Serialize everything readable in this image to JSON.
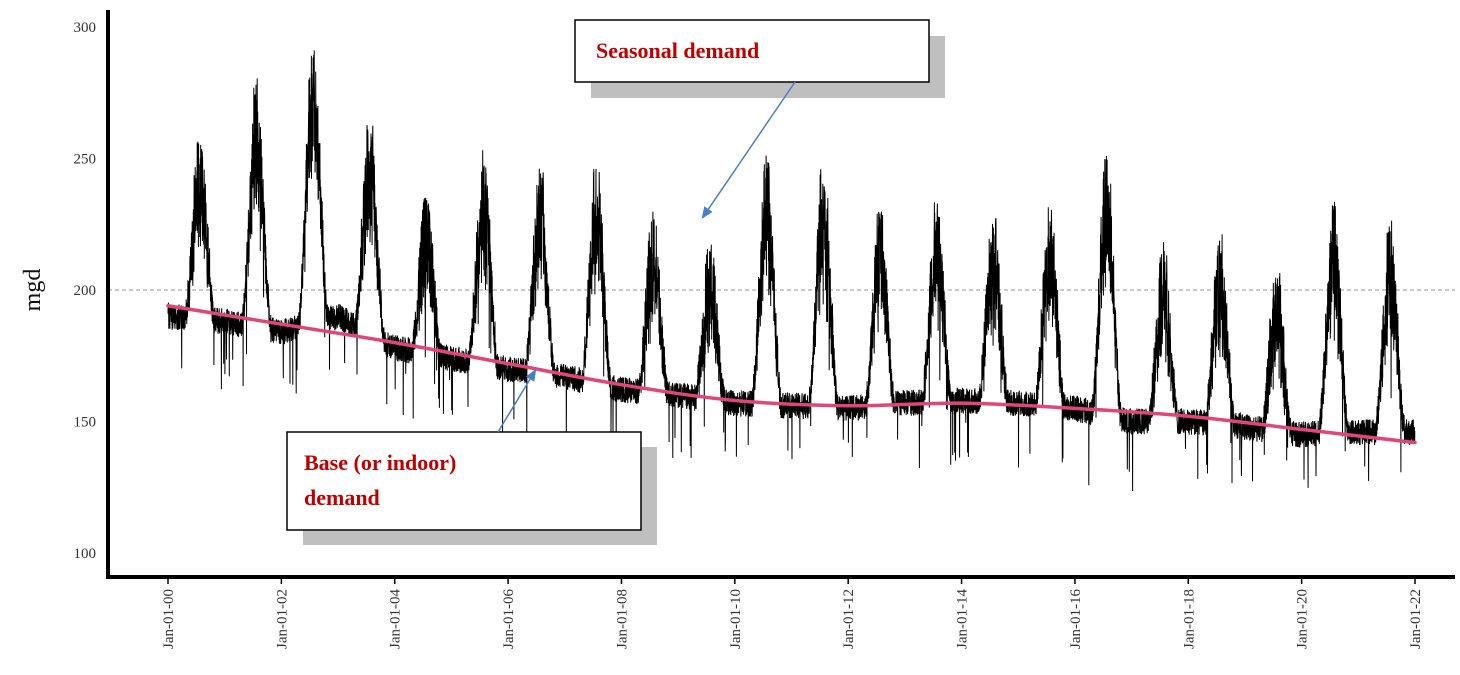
{
  "chart_data": {
    "type": "line",
    "ylabel": "mgd",
    "ylim": [
      100,
      300
    ],
    "yticks": [
      100,
      150,
      200,
      250,
      300
    ],
    "xlim": [
      "2000-01-01",
      "2022-01-01"
    ],
    "xtick_labels": [
      "Jan-01-00",
      "Jan-01-02",
      "Jan-01-04",
      "Jan-01-06",
      "Jan-01-08",
      "Jan-01-10",
      "Jan-01-12",
      "Jan-01-14",
      "Jan-01-16",
      "Jan-01-18",
      "Jan-01-20",
      "Jan-01-22"
    ],
    "reference_line_y": 200,
    "grid": false,
    "colors": {
      "demand": "#000000",
      "base_trend": "#e0457b",
      "reference": "#999999",
      "arrow": "#4a7fc1"
    },
    "series": [
      {
        "role": "daily-demand",
        "years": [
          2000,
          2001,
          2002,
          2003,
          2004,
          2005,
          2006,
          2007,
          2008,
          2009,
          2010,
          2011,
          2012,
          2013,
          2014,
          2015,
          2016,
          2017,
          2018,
          2019,
          2020,
          2021
        ],
        "annual_base": [
          190,
          188,
          184,
          190,
          178,
          174,
          170,
          167,
          162,
          160,
          157,
          156,
          155,
          157,
          158,
          157,
          155,
          150,
          150,
          148,
          145,
          146
        ],
        "annual_peak": [
          257,
          276,
          292,
          263,
          235,
          249,
          245,
          246,
          227,
          215,
          249,
          246,
          232,
          231,
          229,
          231,
          251,
          214,
          217,
          206,
          232,
          225
        ]
      },
      {
        "role": "base-trend",
        "x": [
          "2000-01-01",
          "2002-01-01",
          "2004-01-01",
          "2006-01-01",
          "2008-01-01",
          "2010-01-01",
          "2012-01-01",
          "2014-01-01",
          "2016-01-01",
          "2018-01-01",
          "2020-01-01",
          "2022-01-01"
        ],
        "values": [
          194,
          187,
          180,
          172,
          164,
          158,
          156,
          157,
          155,
          152,
          147,
          142
        ]
      }
    ],
    "annotations": [
      {
        "text": "Seasonal demand",
        "arrow_to": [
          "2009-06-01",
          227
        ]
      },
      {
        "text": "Base (or indoor) demand",
        "lines": [
          "Base (or indoor)",
          "demand"
        ],
        "arrow_to": [
          "2006-07-01",
          170
        ]
      }
    ]
  }
}
